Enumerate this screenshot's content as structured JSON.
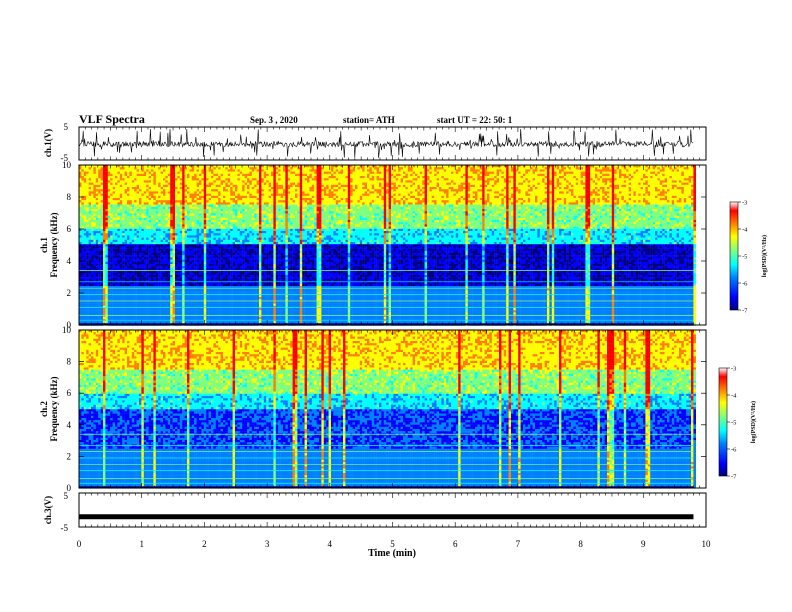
{
  "header": {
    "title": "VLF Spectra",
    "date": "Sep. 3 , 2020",
    "station": "station= ATH",
    "start": "start UT = 22: 50: 1"
  },
  "chart_data": [
    {
      "type": "line",
      "panel": "ch1-waveform",
      "ylabel": "ch.1(V)",
      "ylim": [
        -5,
        5
      ],
      "yticks": [
        "5",
        "-5"
      ],
      "x_range_min": [
        0,
        9.8
      ],
      "color": "#000000"
    },
    {
      "type": "heatmap",
      "panel": "ch1-spectrogram",
      "ylabel_lines": [
        "ch.1",
        "Frequency (kHz)"
      ],
      "ylim": [
        0,
        10
      ],
      "yticks": [
        "0",
        "2",
        "4",
        "6",
        "8",
        "10"
      ],
      "x_range_min": [
        0,
        9.8
      ],
      "colorbar": {
        "label": "log(PSD)(V²/Hz)",
        "range": [
          -7,
          -3
        ],
        "ticks": [
          "-3",
          "-4",
          "-5",
          "-6",
          "-7"
        ],
        "colormap": "jet"
      }
    },
    {
      "type": "heatmap",
      "panel": "ch2-spectrogram",
      "ylabel_lines": [
        "ch.2",
        "Frequency (kHz)"
      ],
      "ylim": [
        0,
        10
      ],
      "yticks": [
        "0",
        "2",
        "4",
        "6",
        "8",
        "10"
      ],
      "x_range_min": [
        0,
        9.8
      ],
      "colorbar": {
        "label": "log(PSD)(V²/Hz)",
        "range": [
          -7,
          -3
        ],
        "ticks": [
          "-3",
          "-4",
          "-5",
          "-6",
          "-7"
        ],
        "colormap": "jet"
      }
    },
    {
      "type": "line",
      "panel": "ch3-waveform",
      "ylabel": "ch.3(V)",
      "ylim": [
        -5,
        5
      ],
      "yticks": [
        "5",
        "-5"
      ],
      "constant_value": -2,
      "x_range_min": [
        0,
        9.8
      ],
      "color": "#000000"
    }
  ],
  "xaxis": {
    "label": "Time (min)",
    "range": [
      0,
      10
    ],
    "ticks": [
      "0",
      "1",
      "2",
      "3",
      "4",
      "5",
      "6",
      "7",
      "8",
      "9",
      "10"
    ]
  },
  "colors": {
    "jet": [
      "#00007f",
      "#0000ff",
      "#007fff",
      "#00ffff",
      "#7fff7f",
      "#ffff00",
      "#ff7f00",
      "#ff0000",
      "#ffffff"
    ]
  }
}
